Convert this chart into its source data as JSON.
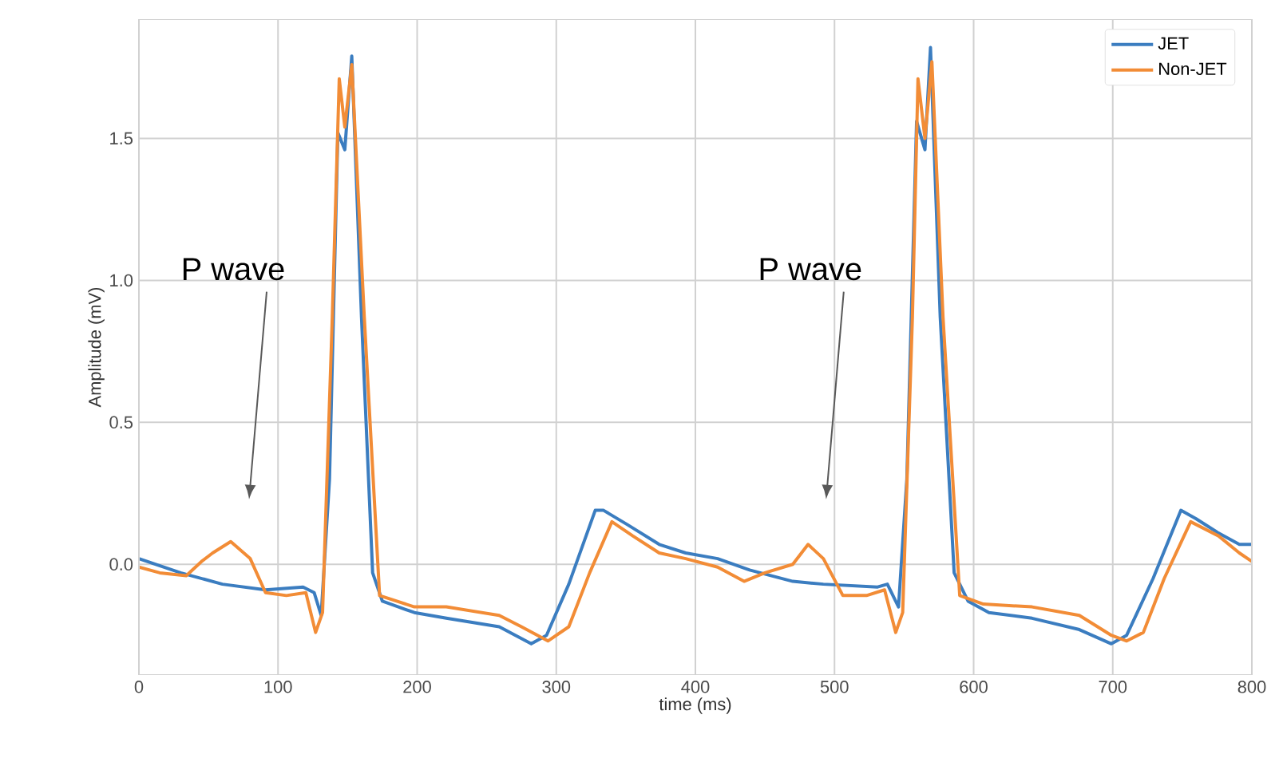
{
  "chart_data": {
    "type": "line",
    "xlabel": "time (ms)",
    "ylabel": "Amplitude (mV)",
    "xlim": [
      0,
      800
    ],
    "ylim": [
      -0.39,
      1.92
    ],
    "xticks": [
      0,
      100,
      200,
      300,
      400,
      500,
      600,
      700,
      800
    ],
    "yticks": [
      {
        "value": 0,
        "label": "0.0"
      },
      0.5,
      {
        "value": 1,
        "label": "1.0"
      },
      1.5
    ],
    "grid": true,
    "legend": "top right",
    "line_style": "solid",
    "annotations": [
      "P wave",
      "P wave"
    ],
    "series": [
      {
        "name": "JET",
        "color": "#3b7dc0",
        "x": [
          0,
          30,
          60,
          91,
          118,
          126,
          131,
          137,
          143,
          148,
          153,
          160,
          168,
          175,
          198,
          221,
          259,
          282,
          293,
          309,
          328,
          334,
          351,
          374,
          393,
          416,
          439,
          470,
          492,
          531,
          538,
          546,
          552,
          559,
          565,
          569,
          576,
          586,
          596,
          611,
          642,
          676,
          699,
          710,
          729,
          749,
          760,
          776,
          791,
          800
        ],
        "values": [
          0.02,
          -0.03,
          -0.07,
          -0.09,
          -0.08,
          -0.1,
          -0.18,
          0.3,
          1.52,
          1.46,
          1.79,
          0.87,
          -0.03,
          -0.13,
          -0.17,
          -0.19,
          -0.22,
          -0.28,
          -0.25,
          -0.07,
          0.19,
          0.19,
          0.14,
          0.07,
          0.04,
          0.02,
          -0.02,
          -0.06,
          -0.07,
          -0.08,
          -0.07,
          -0.15,
          0.3,
          1.56,
          1.46,
          1.82,
          0.87,
          -0.03,
          -0.13,
          -0.17,
          -0.19,
          -0.23,
          -0.28,
          -0.25,
          -0.05,
          0.19,
          0.16,
          0.11,
          0.07,
          0.07
        ]
      },
      {
        "name": "Non-JET",
        "color": "#f28c36",
        "x": [
          0,
          15,
          34,
          45,
          53,
          66,
          80,
          91,
          106,
          120,
          127,
          132,
          139,
          144,
          148,
          153,
          162,
          173,
          198,
          221,
          259,
          275,
          294,
          309,
          324,
          340,
          355,
          374,
          393,
          416,
          435,
          450,
          470,
          481,
          492,
          506,
          523,
          536,
          544,
          549,
          556,
          560,
          565,
          570,
          578,
          590,
          607,
          642,
          676,
          699,
          710,
          722,
          737,
          756,
          776,
          791,
          800
        ],
        "values": [
          -0.01,
          -0.03,
          -0.04,
          0.01,
          0.04,
          0.08,
          0.02,
          -0.1,
          -0.11,
          -0.1,
          -0.24,
          -0.17,
          0.87,
          1.71,
          1.54,
          1.76,
          0.87,
          -0.11,
          -0.15,
          -0.15,
          -0.18,
          -0.22,
          -0.27,
          -0.22,
          -0.03,
          0.15,
          0.1,
          0.04,
          0.02,
          -0.01,
          -0.06,
          -0.03,
          0.0,
          0.07,
          0.02,
          -0.11,
          -0.11,
          -0.09,
          -0.24,
          -0.17,
          0.87,
          1.71,
          1.5,
          1.77,
          0.87,
          -0.11,
          -0.14,
          -0.15,
          -0.18,
          -0.25,
          -0.27,
          -0.24,
          -0.05,
          0.15,
          0.1,
          0.04,
          0.01
        ]
      }
    ]
  }
}
